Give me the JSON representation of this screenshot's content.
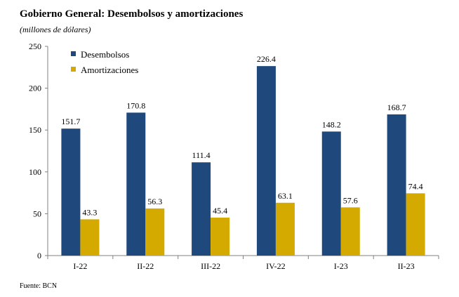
{
  "title": "Gobierno General: Desembolsos y amortizaciones",
  "subtitle": "(millones de dólares)",
  "source": "Fuente: BCN",
  "chart_data": {
    "type": "bar",
    "categories": [
      "I-22",
      "II-22",
      "III-22",
      "IV-22",
      "I-23",
      "II-23"
    ],
    "series": [
      {
        "name": "Desembolsos",
        "values": [
          151.7,
          170.8,
          111.4,
          226.4,
          148.2,
          168.7
        ],
        "color": "#1F497D"
      },
      {
        "name": "Amortizaciones",
        "values": [
          43.3,
          56.3,
          45.4,
          63.1,
          57.6,
          74.4
        ],
        "color": "#D4A900"
      }
    ],
    "ylim": [
      0,
      250
    ],
    "yticks": [
      0,
      50,
      100,
      150,
      200,
      250
    ],
    "data_labels": true,
    "legend": "top-left",
    "grid": false
  }
}
